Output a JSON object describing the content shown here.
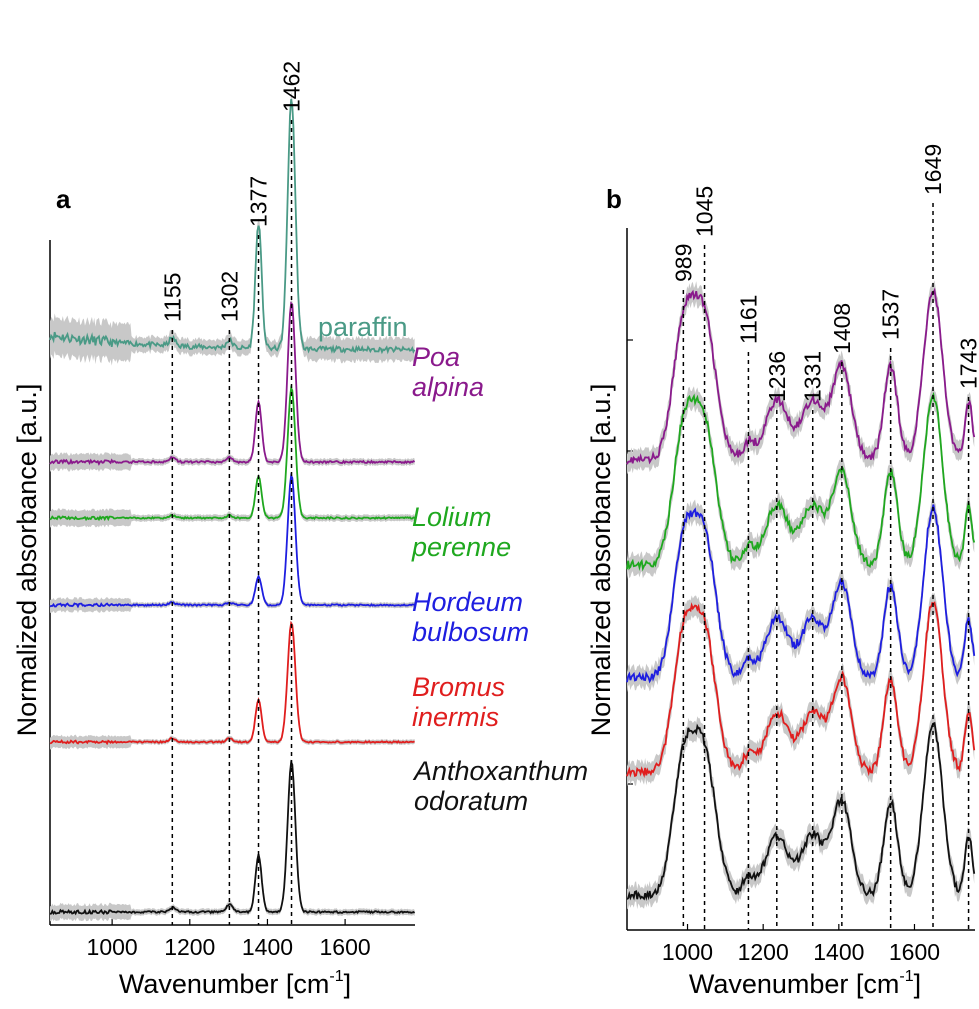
{
  "colors": {
    "paraffin": "#4a9a86",
    "poa": "#8a1a8c",
    "lolium": "#1fa81f",
    "hordeum": "#1e1ee0",
    "bromus": "#e01e1e",
    "anthoxanthum": "#111111",
    "band": "#c8c8c8"
  },
  "chart_data": [
    {
      "type": "line",
      "panel_label": "a",
      "xlabel": "Wavenumber [cm",
      "xlabel_sup": "-1",
      "xlabel_end": "]",
      "ylabel": "Normalized absorbance [a.u.]",
      "xlim": [
        840,
        1780
      ],
      "xticks": [
        1000,
        1200,
        1400,
        1600
      ],
      "xtick_labels": [
        "1000",
        "1200",
        "1400",
        "1600"
      ],
      "peak_labels": [
        "1155",
        "1302",
        "1377",
        "1462"
      ],
      "peak_positions": [
        1155,
        1302,
        1377,
        1462
      ],
      "series": [
        {
          "name": "paraffin",
          "key": "paraffin",
          "label_lines": [
            "paraffin"
          ],
          "upright": true,
          "baseline": 0.48,
          "scale": 0.38,
          "peaks": [
            [
              1377,
              0.5,
              8
            ],
            [
              1462,
              1.0,
              10
            ],
            [
              1155,
              0.03,
              8
            ],
            [
              1302,
              0.03,
              8
            ]
          ],
          "noise": 0.02,
          "band": 0.03
        },
        {
          "name": "Poa alpina",
          "key": "poa",
          "label_lines": [
            "Poa",
            "alpina"
          ],
          "upright": false,
          "baseline": 0.0,
          "scale": 0.48,
          "peaks": [
            [
              1377,
              0.38,
              8
            ],
            [
              1462,
              1.0,
              10
            ],
            [
              1155,
              0.03,
              8
            ],
            [
              1302,
              0.03,
              8
            ]
          ],
          "noise": 0.012,
          "band": 0.02
        },
        {
          "name": "Lolium perenne",
          "key": "lolium",
          "label_lines": [
            "Lolium",
            "perenne"
          ],
          "upright": false,
          "baseline": 0.0,
          "scale": 0.48,
          "peaks": [
            [
              1377,
              0.32,
              8
            ],
            [
              1462,
              1.0,
              10
            ],
            [
              1155,
              0.02,
              8
            ],
            [
              1302,
              0.02,
              8
            ]
          ],
          "noise": 0.012,
          "band": 0.025
        },
        {
          "name": "Hordeum bulbosum",
          "key": "hordeum",
          "label_lines": [
            "Hordeum",
            "bulbosum"
          ],
          "upright": false,
          "baseline": 0.0,
          "scale": 0.48,
          "peaks": [
            [
              1377,
              0.22,
              8
            ],
            [
              1462,
              1.0,
              10
            ],
            [
              1155,
              0.02,
              8
            ],
            [
              1302,
              0.02,
              8
            ]
          ],
          "noise": 0.012,
          "band": 0.02
        },
        {
          "name": "Bromus inermis",
          "key": "bromus",
          "label_lines": [
            "Bromus",
            "inermis"
          ],
          "upright": false,
          "baseline": 0.0,
          "scale": 0.52,
          "peaks": [
            [
              1377,
              0.35,
              8
            ],
            [
              1462,
              1.0,
              10
            ],
            [
              1155,
              0.03,
              8
            ],
            [
              1302,
              0.03,
              8
            ]
          ],
          "noise": 0.012,
          "band": 0.02
        },
        {
          "name": "Anthoxanthum odoratum",
          "key": "anthoxanthum",
          "label_lines": [
            "Anthoxanthum",
            "odoratum"
          ],
          "upright": false,
          "baseline": 0.0,
          "scale": 0.6,
          "peaks": [
            [
              1377,
              0.38,
              8
            ],
            [
              1462,
              1.0,
              10
            ],
            [
              1155,
              0.03,
              8
            ],
            [
              1302,
              0.05,
              8
            ]
          ],
          "noise": 0.012,
          "band": 0.02
        }
      ]
    },
    {
      "type": "line",
      "panel_label": "b",
      "xlabel": "Wavenumber [cm",
      "xlabel_sup": "-1",
      "xlabel_end": "]",
      "ylabel": "Normalized absorbance [a.u.]",
      "xlim": [
        840,
        1760
      ],
      "xticks": [
        1000,
        1200,
        1400,
        1600
      ],
      "xtick_labels": [
        "1000",
        "1200",
        "1400",
        "1600"
      ],
      "peak_labels": [
        "989",
        "1045",
        "1161",
        "1236",
        "1331",
        "1408",
        "1537",
        "1649",
        "1743"
      ],
      "peak_positions": [
        989,
        1045,
        1161,
        1236,
        1331,
        1408,
        1537,
        1649,
        1743
      ],
      "series": [
        {
          "name": "Poa alpina",
          "key": "poa"
        },
        {
          "name": "Lolium perenne",
          "key": "lolium"
        },
        {
          "name": "Hordeum bulbosum",
          "key": "hordeum"
        },
        {
          "name": "Bromus inermis",
          "key": "bromus"
        },
        {
          "name": "Anthoxanthum odoratum",
          "key": "anthoxanthum"
        }
      ]
    }
  ]
}
